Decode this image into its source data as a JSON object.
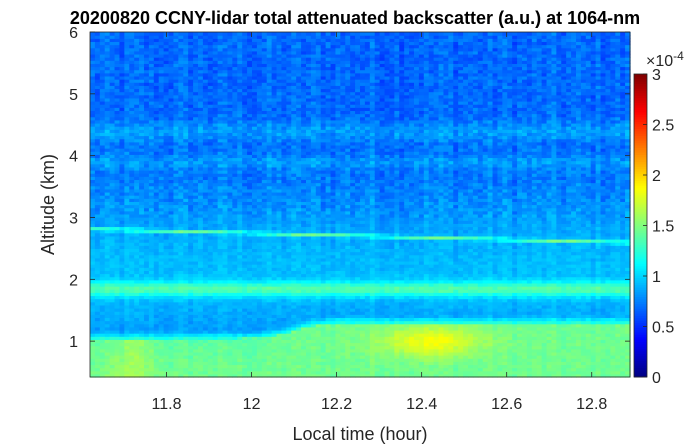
{
  "chart_data": {
    "type": "heatmap",
    "title": "20200820 CCNY-lidar total attenuated backscatter (a.u.) at 1064-nm",
    "xlabel": "Local time (hour)",
    "ylabel": "Altitude (km)",
    "xlim": [
      11.62,
      12.89
    ],
    "ylim": [
      0.42,
      6.0
    ],
    "x_ticks": [
      11.8,
      12.0,
      12.2,
      12.4,
      12.6,
      12.8
    ],
    "x_tick_labels": [
      "11.8",
      "12",
      "12.2",
      "12.4",
      "12.6",
      "12.8"
    ],
    "y_ticks": [
      1,
      2,
      3,
      4,
      5,
      6
    ],
    "y_tick_labels": [
      "1",
      "2",
      "3",
      "4",
      "5",
      "6"
    ],
    "colorbar": {
      "colormap": "jet",
      "range": [
        0,
        0.0003
      ],
      "ticks": [
        0,
        0.5,
        1,
        1.5,
        2,
        2.5,
        3
      ],
      "tick_labels": [
        "0",
        "0.5",
        "1",
        "1.5",
        "2",
        "2.5",
        "3"
      ],
      "multiplier": "×10^-4",
      "multiplier_base": "×10",
      "multiplier_exp": "-4"
    },
    "layers": [
      {
        "feature": "boundary layer top",
        "altitude_km_start": 1.05,
        "altitude_km_after_12_1h": 1.3,
        "value": 1.55
      },
      {
        "feature": "boundary layer peak",
        "time_h": 12.42,
        "altitude_km": 1.0,
        "value": 1.9
      },
      {
        "feature": "aerosol layer",
        "altitude_km": 1.85,
        "value": 1.15
      },
      {
        "feature": "thin aerosol layer",
        "altitude_km": 2.6,
        "value": 1.25
      },
      {
        "feature": "faint layer",
        "altitude_km": 4.4,
        "value": 0.85
      },
      {
        "feature": "free troposphere background",
        "altitude_km": 5.5,
        "value": 0.7
      }
    ]
  }
}
